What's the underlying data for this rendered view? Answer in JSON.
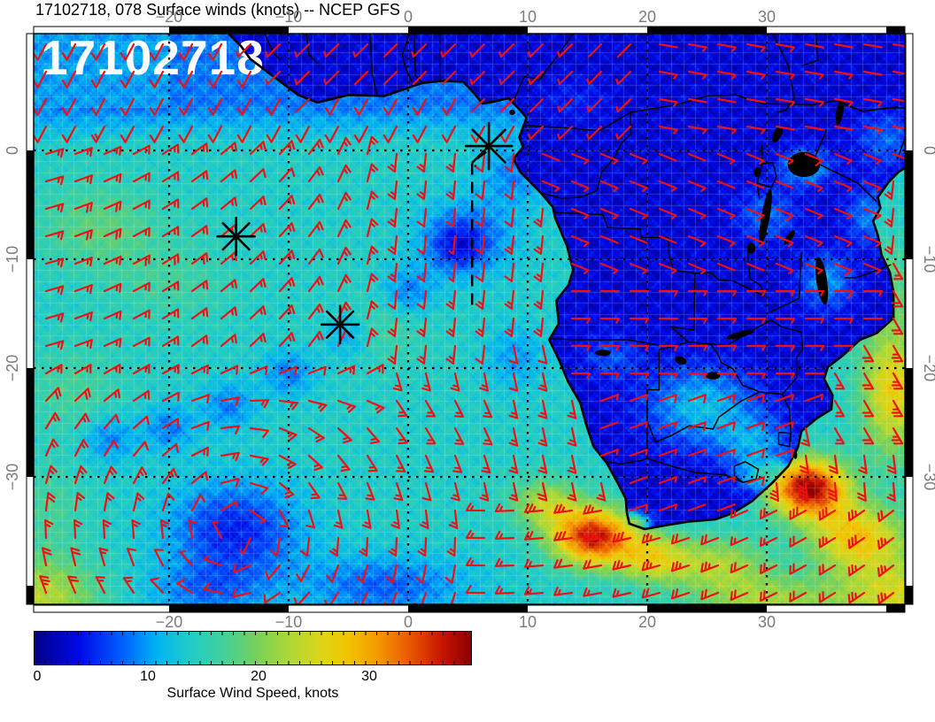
{
  "title": "17102718, 078 Surface winds (knots) -- NCEP GFS",
  "stamp": "17102718",
  "axes": {
    "lon_tick_labels": [
      "−20",
      "−10",
      "0",
      "10",
      "20",
      "30"
    ],
    "lon_tick_values": [
      -20,
      -10,
      0,
      10,
      20,
      30
    ],
    "lat_tick_labels": [
      "0",
      "−10",
      "−20",
      "−30"
    ],
    "lat_tick_values": [
      0,
      -10,
      -20,
      -30
    ],
    "tick_label_color": "#7b7b7b"
  },
  "colorbar": {
    "label": "Surface Wind Speed, knots",
    "tick_labels": [
      "0",
      "10",
      "20",
      "30"
    ],
    "tick_values": [
      0,
      10,
      20,
      30
    ],
    "min": 0,
    "max": 39.6
  },
  "colors": {
    "barb": "#ee1111",
    "coastline": "#000000",
    "graticule": "#000000",
    "stamp": "#ffffff",
    "title": "#000000",
    "frame_black": "#000000",
    "frame_white": "#ffffff"
  },
  "chart_data": {
    "type": "heatmap",
    "title": "17102718, 078 Surface winds (knots) -- NCEP GFS",
    "datetime_stamp": "17102718",
    "forecast_hour": "078",
    "model": "NCEP GFS",
    "variable": "Surface winds (knots)",
    "projection": "cylindrical-equidistant",
    "lon_range": [
      -31.3,
      41.6
    ],
    "lat_range": [
      -41.7,
      10.7
    ],
    "lon_ticks": [
      -20,
      -10,
      0,
      10,
      20,
      30
    ],
    "lat_ticks": [
      0,
      -10,
      -20,
      -30
    ],
    "graticule_interval_deg": 10,
    "colorbar": {
      "label": "Surface Wind Speed, knots",
      "min": 0,
      "max": 39.6,
      "ticks": [
        0,
        10,
        20,
        30
      ],
      "colormap_stops": [
        [
          0,
          "#000087"
        ],
        [
          4,
          "#0008e8"
        ],
        [
          8,
          "#0060ff"
        ],
        [
          11,
          "#00b2f2"
        ],
        [
          14,
          "#1fccc8"
        ],
        [
          17,
          "#40d09e"
        ],
        [
          20,
          "#74d05c"
        ],
        [
          23,
          "#abd836"
        ],
        [
          26,
          "#ddd518"
        ],
        [
          28.5,
          "#f2c300"
        ],
        [
          31,
          "#f59b00"
        ],
        [
          33,
          "#ee7000"
        ],
        [
          35,
          "#e14000"
        ],
        [
          37,
          "#c61400"
        ],
        [
          39.6,
          "#8c0000"
        ]
      ]
    },
    "overlays": {
      "wind_barbs": {
        "color": "#ee1111",
        "grid_spacing_px": 33,
        "units": "knots"
      },
      "coastline": "Africa with country borders and lakes",
      "station_markers": [
        {
          "symbol": "asterisk",
          "lon": -14.4,
          "lat": -7.9
        },
        {
          "symbol": "asterisk",
          "lon": -5.7,
          "lat": -16.0
        },
        {
          "symbol": "asterisk",
          "lon": 6.75,
          "lat": 0.4
        }
      ],
      "track_line": {
        "style": "dashed",
        "lon": 5.35,
        "from_lat": -1.1,
        "to_lat": -14.8
      }
    },
    "field_summary": [
      {
        "region": "tropical South Atlantic",
        "speed_kt": 14
      },
      {
        "region": "Gulf of Guinea / equatorial land",
        "speed_kt": 5
      },
      {
        "region": "north of equator, eastern Atlantic",
        "speed_kt": 9
      },
      {
        "region": "anticyclone center near 15W 35S",
        "speed_kt": 5
      },
      {
        "region": "SW of Cape Town",
        "speed_kt": 36
      },
      {
        "region": "Indian Ocean SE of South Africa",
        "speed_kt": 38
      },
      {
        "region": "Mozambique Channel edge",
        "speed_kt": 28
      },
      {
        "region": "south-west map corner",
        "speed_kt": 23
      }
    ]
  }
}
